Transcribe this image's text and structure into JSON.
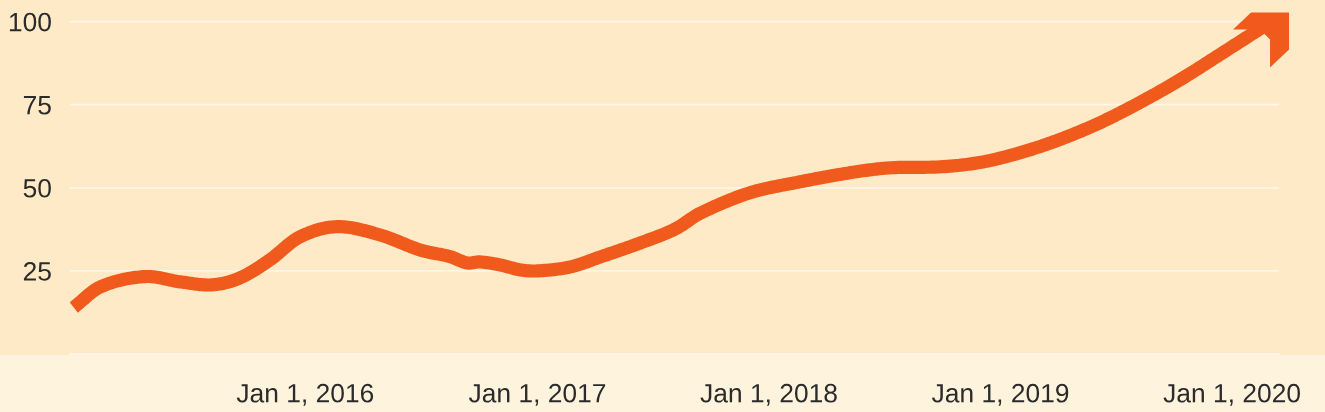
{
  "chart_data": {
    "type": "line",
    "x": [
      "2015-01-01",
      "2015-02-12",
      "2015-04-23",
      "2015-06-18",
      "2015-08-07",
      "2015-09-20",
      "2015-11-06",
      "2015-12-23",
      "2016-02-20",
      "2016-04-28",
      "2016-06-30",
      "2016-08-16",
      "2016-09-12",
      "2016-10-02",
      "2016-11-03",
      "2016-12-05",
      "2017-01-01",
      "2017-02-22",
      "2017-04-10",
      "2017-06-12",
      "2017-08-06",
      "2017-09-15",
      "2017-12-02",
      "2018-02-19",
      "2018-05-08",
      "2018-07-10",
      "2018-09-27",
      "2018-11-29",
      "2019-01-31",
      "2019-04-04",
      "2019-06-07",
      "2019-08-08",
      "2019-10-11",
      "2019-12-13",
      "2020-02-22"
    ],
    "series": [
      {
        "color": "#f05a1c",
        "values": [
          14,
          20.2,
          23.3,
          21.7,
          20.8,
          22.9,
          28.3,
          35.2,
          38.3,
          35.8,
          31.3,
          29.3,
          27.4,
          27.7,
          26.8,
          25.3,
          25.0,
          26.2,
          29.2,
          33.4,
          37.6,
          42.4,
          48.5,
          51.8,
          54.5,
          56.0,
          56.3,
          57.6,
          60.5,
          64.5,
          69.6,
          75.6,
          82.5,
          90.1,
          98.8
        ]
      }
    ],
    "xlim": [
      "2014-12-26",
      "2020-03-15"
    ],
    "xticks": [
      {
        "value": "2016-01-01",
        "label": "Jan 1, 2016"
      },
      {
        "value": "2017-01-01",
        "label": "Jan 1, 2017"
      },
      {
        "value": "2018-01-01",
        "label": "Jan 1, 2018"
      },
      {
        "value": "2019-01-01",
        "label": "Jan 1, 2019"
      },
      {
        "value": "2020-01-01",
        "label": "Jan 1, 2020"
      }
    ],
    "ylim": [
      0,
      106.5
    ],
    "yticks": [
      {
        "value": 0,
        "label": null
      },
      25,
      50,
      75,
      100
    ],
    "grid": "y",
    "line_style": "solid"
  }
}
